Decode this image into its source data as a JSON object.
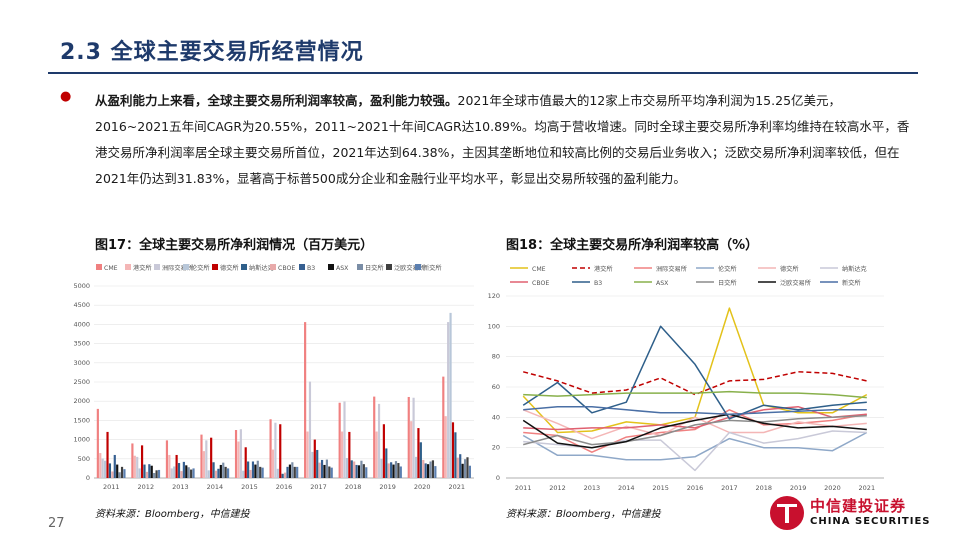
{
  "header": {
    "title": "2.3  全球主要交易所经营情况"
  },
  "body": {
    "lead": "从盈利能力上来看，全球主要交易所利润率较高，盈利能力较强。",
    "text": "2021年全球市值最大的12家上市交易所平均净利润为15.25亿美元，2016~2021五年间CAGR为20.55%，2011~2021十年间CAGR达10.89%。均高于营收增速。同时全球主要交易所净利率均维持在较高水平，香港交易所净利润率居全球主要交易所首位，2021年达到64.38%，主因其垄断地位和较高比例的交易后业务收入；泛欧交易所净利润率较低，但在2021年仍达到31.83%，显著高于标普500成分企业和金融行业平均水平，彰显出交易所较强的盈利能力。"
  },
  "figure17": {
    "title": "图17：全球主要交易所净利润情况（百万美元）",
    "source": "资料来源：Bloomberg，中信建投"
  },
  "figure18": {
    "title": "图18：全球主要交易所净利润率较高（%）",
    "source": "资料来源：Bloomberg，中信建投"
  },
  "page_number": "27",
  "logo": {
    "cn": "中信建投证券",
    "en": "CHINA SECURITIES"
  },
  "chart_data": [
    {
      "type": "bar",
      "title": "图17：全球主要交易所净利润情况（百万美元）",
      "ylim": [
        0,
        5000
      ],
      "yticks": [
        0,
        500,
        1000,
        1500,
        2000,
        2500,
        3000,
        3500,
        4000,
        4500,
        5000
      ],
      "grid": true,
      "legend_position": "top",
      "categories": [
        "2011",
        "2012",
        "2013",
        "2014",
        "2015",
        "2016",
        "2017",
        "2018",
        "2019",
        "2020",
        "2021"
      ],
      "series": [
        {
          "name": "CME",
          "color": "#f08080",
          "values": [
            1800,
            900,
            980,
            1130,
            1250,
            1530,
            4060,
            1960,
            2120,
            2110,
            2640
          ]
        },
        {
          "name": "港交所",
          "color": "#f4b6b6",
          "values": [
            650,
            580,
            600,
            700,
            950,
            740,
            1210,
            1210,
            1210,
            1480,
            1610
          ]
        },
        {
          "name": "洲际交易所",
          "color": "#c9c9d8",
          "values": [
            510,
            550,
            250,
            980,
            1270,
            1440,
            2510,
            1990,
            1930,
            2090,
            4060
          ]
        },
        {
          "name": "伦交所",
          "color": "#b8c7d9",
          "values": [
            450,
            250,
            300,
            200,
            190,
            240,
            680,
            520,
            500,
            550,
            4300
          ]
        },
        {
          "name": "德交所",
          "color": "#c00000",
          "values": [
            1200,
            850,
            600,
            1050,
            800,
            1400,
            1000,
            1200,
            1400,
            1300,
            1450
          ]
        },
        {
          "name": "纳斯达克",
          "color": "#2e5f8a",
          "values": [
            380,
            350,
            390,
            410,
            430,
            110,
            730,
            460,
            770,
            930,
            1190
          ]
        },
        {
          "name": "CBOE",
          "color": "#e8aaaa",
          "values": [
            170,
            160,
            180,
            190,
            210,
            140,
            400,
            430,
            380,
            470,
            530
          ]
        },
        {
          "name": "B3",
          "color": "#365f91",
          "values": [
            600,
            360,
            420,
            240,
            430,
            290,
            470,
            340,
            410,
            380,
            620
          ]
        },
        {
          "name": "ASX",
          "color": "#111111",
          "values": [
            350,
            320,
            330,
            340,
            350,
            350,
            340,
            330,
            350,
            360,
            370
          ]
        },
        {
          "name": "日交所",
          "color": "#7a8da6",
          "values": [
            150,
            130,
            280,
            400,
            450,
            410,
            480,
            450,
            440,
            430,
            490
          ]
        },
        {
          "name": "泛欧交易所",
          "color": "#404040",
          "values": [
            290,
            200,
            220,
            290,
            290,
            290,
            300,
            360,
            390,
            460,
            540
          ]
        },
        {
          "name": "新交所",
          "color": "#5b7fb0",
          "values": [
            230,
            210,
            250,
            250,
            270,
            290,
            270,
            280,
            300,
            310,
            320
          ]
        }
      ]
    },
    {
      "type": "line",
      "title": "图18：全球主要交易所净利润率较高（%）",
      "ylim": [
        0,
        120
      ],
      "yticks": [
        0,
        20,
        40,
        60,
        80,
        100,
        120
      ],
      "grid": true,
      "legend_position": "top",
      "categories": [
        "2011",
        "2012",
        "2013",
        "2014",
        "2015",
        "2016",
        "2017",
        "2018",
        "2019",
        "2020",
        "2021"
      ],
      "series": [
        {
          "name": "CME",
          "color": "#e3c21a",
          "dash": "",
          "values": [
            54,
            30,
            31,
            37,
            35,
            40,
            112,
            48,
            43,
            43,
            55
          ]
        },
        {
          "name": "港交所",
          "color": "#c00000",
          "dash": "5,3",
          "values": [
            70,
            64,
            56,
            58,
            66,
            55,
            64,
            65,
            70,
            69,
            64
          ]
        },
        {
          "name": "洲际交易所",
          "color": "#f08080",
          "dash": "",
          "values": [
            30,
            28,
            17,
            27,
            30,
            32,
            45,
            35,
            36,
            38,
            42
          ]
        },
        {
          "name": "伦交所",
          "color": "#8fa8c8",
          "dash": "",
          "values": [
            28,
            15,
            15,
            12,
            12,
            14,
            26,
            20,
            20,
            18,
            30
          ]
        },
        {
          "name": "德交所",
          "color": "#f4b6b6",
          "dash": "",
          "values": [
            45,
            36,
            26,
            34,
            28,
            40,
            30,
            30,
            37,
            34,
            36
          ]
        },
        {
          "name": "纳斯达克",
          "color": "#c9c9d8",
          "dash": "",
          "values": [
            24,
            22,
            20,
            25,
            25,
            5,
            30,
            23,
            26,
            31,
            30
          ]
        },
        {
          "name": "CBOE",
          "color": "#e06070",
          "dash": "",
          "values": [
            33,
            32,
            33,
            33,
            35,
            33,
            40,
            45,
            47,
            40,
            42
          ]
        },
        {
          "name": "B3",
          "color": "#2e5f8a",
          "dash": "",
          "values": [
            48,
            63,
            43,
            50,
            100,
            75,
            39,
            48,
            45,
            48,
            50
          ]
        },
        {
          "name": "ASX",
          "color": "#88b04b",
          "dash": "",
          "values": [
            55,
            54,
            55,
            56,
            56,
            56,
            57,
            56,
            56,
            55,
            53
          ]
        },
        {
          "name": "日交所",
          "color": "#8c8c8c",
          "dash": "",
          "values": [
            22,
            28,
            22,
            24,
            28,
            35,
            38,
            37,
            39,
            40,
            41
          ]
        },
        {
          "name": "泛欧交易所",
          "color": "#111111",
          "dash": "",
          "values": [
            38,
            23,
            20,
            24,
            33,
            38,
            42,
            36,
            33,
            34,
            32
          ]
        },
        {
          "name": "新交所",
          "color": "#4a6fa5",
          "dash": "",
          "values": [
            45,
            47,
            47,
            45,
            43,
            43,
            42,
            43,
            44,
            45,
            45
          ]
        }
      ]
    }
  ]
}
